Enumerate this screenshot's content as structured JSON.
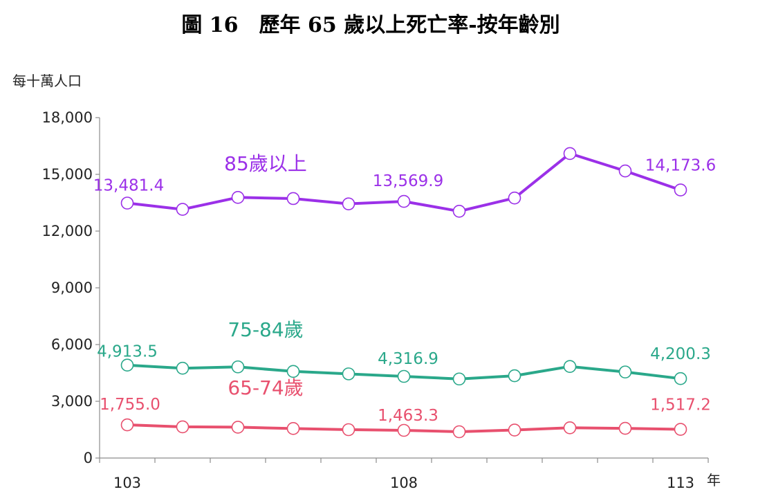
{
  "title": "圖 16　歷年 65 歲以上死亡率-按年齡別",
  "chart_data": {
    "type": "line",
    "title": "圖 16　歷年 65 歲以上死亡率-按年齡別",
    "ylabel": "每十萬人口",
    "xlabel": "年",
    "ylim": [
      0,
      18000
    ],
    "yticks": [
      "0",
      "3,000",
      "6,000",
      "9,000",
      "12,000",
      "15,000",
      "18,000"
    ],
    "ytick_values": [
      0,
      3000,
      6000,
      9000,
      12000,
      15000,
      18000
    ],
    "x": [
      103,
      104,
      105,
      106,
      107,
      108,
      109,
      110,
      111,
      112,
      113
    ],
    "xtick_labels": [
      {
        "x": 103,
        "label": "103"
      },
      {
        "x": 108,
        "label": "108"
      },
      {
        "x": 113,
        "label": "113"
      }
    ],
    "grid": false,
    "legend": "inline labels",
    "series": [
      {
        "name": "85歲以上",
        "color": "#9b30e8",
        "values": [
          13481.4,
          13150,
          13780,
          13720,
          13440,
          13569.9,
          13050,
          13750,
          16100,
          15180,
          14173.6
        ],
        "labels": [
          {
            "x": 103,
            "text": "13,481.4"
          },
          {
            "x": 108,
            "text": "13,569.9"
          },
          {
            "x": 113,
            "text": "14,173.6"
          }
        ]
      },
      {
        "name": "75-84歲",
        "color": "#2aa88a",
        "values": [
          4913.5,
          4750,
          4820,
          4580,
          4450,
          4316.9,
          4180,
          4350,
          4840,
          4550,
          4200.3
        ],
        "labels": [
          {
            "x": 103,
            "text": "4,913.5"
          },
          {
            "x": 108,
            "text": "4,316.9"
          },
          {
            "x": 113,
            "text": "4,200.3"
          }
        ]
      },
      {
        "name": "65-74歲",
        "color": "#e8506e",
        "values": [
          1755.0,
          1650,
          1630,
          1560,
          1500,
          1463.3,
          1390,
          1480,
          1600,
          1570,
          1517.2
        ],
        "labels": [
          {
            "x": 103,
            "text": "1,755.0"
          },
          {
            "x": 108,
            "text": "1,463.3"
          },
          {
            "x": 113,
            "text": "1,517.2"
          }
        ]
      }
    ]
  }
}
